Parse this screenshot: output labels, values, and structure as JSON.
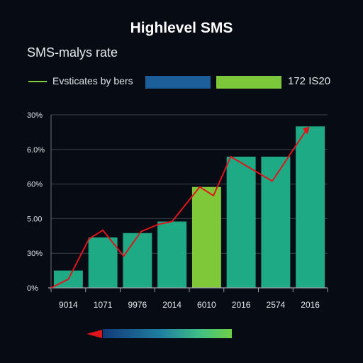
{
  "chart_data": {
    "type": "bar",
    "title": "Highlevel SMS",
    "subtitle": "SMS-malys rate",
    "legend": {
      "label": "Evsticates by bers",
      "code": "172 IS20",
      "colors": [
        "#7bd13a",
        "#1b5e9a",
        "#7cc83a"
      ]
    },
    "y_tick_labels": [
      "0%",
      "30%",
      "5.00",
      "60%",
      "6.0%",
      "30%"
    ],
    "x_tick_labels": [
      "9014",
      "1071",
      "9976",
      "2014",
      "6010",
      "2016",
      "2574",
      "2016"
    ],
    "ylim": [
      0,
      6
    ],
    "grid": true,
    "categories": [
      "9014",
      "1071",
      "9976",
      "2014",
      "6010",
      "2016",
      "2574",
      "2016"
    ],
    "values": [
      0.6,
      1.75,
      1.9,
      2.3,
      3.5,
      4.55,
      4.55,
      5.6
    ],
    "bar_colors": [
      "#1faa86",
      "#1faa86",
      "#1faa86",
      "#1faa86",
      "#7ec83a",
      "#1faa86",
      "#1faa86",
      "#1faa86"
    ],
    "line_color": "#e0151c",
    "line_values": [
      0.0,
      0.3,
      1.7,
      2.0,
      1.1,
      1.95,
      2.2,
      2.3,
      3.5,
      3.2,
      4.55,
      3.7,
      5.5
    ],
    "line_x": [
      0.0,
      0.5,
      1.1,
      1.5,
      2.1,
      2.6,
      3.1,
      3.5,
      4.3,
      4.7,
      5.2,
      6.4,
      7.4
    ]
  }
}
